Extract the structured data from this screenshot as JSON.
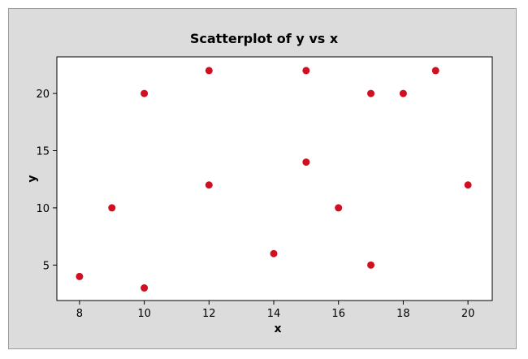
{
  "chart_data": {
    "type": "scatter",
    "title": "Scatterplot of y vs x",
    "xlabel": "x",
    "ylabel": "y",
    "xlim": [
      7.3,
      20.75
    ],
    "ylim": [
      1.9,
      23.2
    ],
    "x_ticks": [
      8,
      10,
      12,
      14,
      16,
      18,
      20
    ],
    "y_ticks": [
      5,
      10,
      15,
      20
    ],
    "grid": false,
    "marker_color": "#d01020",
    "points": [
      {
        "x": 8,
        "y": 4
      },
      {
        "x": 9,
        "y": 10
      },
      {
        "x": 10,
        "y": 20
      },
      {
        "x": 10,
        "y": 3
      },
      {
        "x": 12,
        "y": 22
      },
      {
        "x": 12,
        "y": 12
      },
      {
        "x": 14,
        "y": 6
      },
      {
        "x": 15,
        "y": 22
      },
      {
        "x": 15,
        "y": 14
      },
      {
        "x": 16,
        "y": 10
      },
      {
        "x": 17,
        "y": 20
      },
      {
        "x": 17,
        "y": 5
      },
      {
        "x": 18,
        "y": 20
      },
      {
        "x": 19,
        "y": 22
      },
      {
        "x": 20,
        "y": 12
      }
    ]
  }
}
